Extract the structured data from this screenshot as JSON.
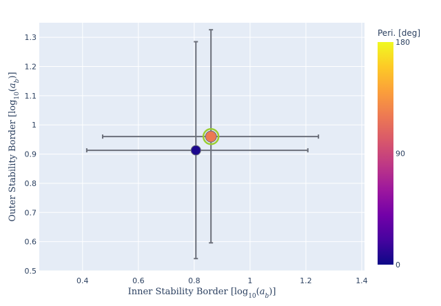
{
  "chart_data": {
    "type": "scatter",
    "title": "",
    "xlabel": {
      "prefix": "Inner Stability Border [log",
      "sub": "10",
      "mid": "(",
      "var": "a",
      "varsub": "b",
      "suffix": ")]"
    },
    "ylabel": {
      "prefix": "Outer Stability Border [log",
      "sub": "10",
      "mid": "(",
      "var": "a",
      "varsub": "b",
      "suffix": ")]"
    },
    "xlim": [
      0.245,
      1.41
    ],
    "ylim": [
      0.5,
      1.35
    ],
    "x_ticks": [
      0.4,
      0.6,
      0.8,
      1,
      1.2,
      1.4
    ],
    "x_tick_labels": [
      "0.4",
      "0.6",
      "0.8",
      "1",
      "1.2",
      "1.4"
    ],
    "y_ticks": [
      0.5,
      0.6,
      0.7,
      0.8,
      0.9,
      1,
      1.1,
      1.2,
      1.3
    ],
    "y_tick_labels": [
      "0.5",
      "0.6",
      "0.7",
      "0.8",
      "0.9",
      "1",
      "1.1",
      "1.2",
      "1.3"
    ],
    "grid": true,
    "points": [
      {
        "x": 0.806,
        "y": 0.913,
        "x_err_minus": 0.391,
        "x_err_plus": 0.401,
        "y_err_minus": 0.371,
        "y_err_plus": 0.372,
        "color_value": 5,
        "highlighted": false
      },
      {
        "x": 0.86,
        "y": 0.96,
        "x_err_minus": 0.388,
        "x_err_plus": 0.385,
        "y_err_minus": 0.364,
        "y_err_plus": 0.366,
        "color_value": 120,
        "highlighted": true
      }
    ],
    "colorbar": {
      "title": "Peri. [deg]",
      "min": 0,
      "max": 180,
      "ticks": [
        0,
        90,
        180
      ],
      "tick_labels": [
        "0",
        "90",
        "180"
      ],
      "colorscale": [
        "#0d0887",
        "#46039f",
        "#7201a8",
        "#9c179e",
        "#bd3786",
        "#d8576b",
        "#ed7953",
        "#fb9f3a",
        "#fdca26",
        "#f0f921"
      ]
    },
    "colors": {
      "plot_bg": "#e5ecf6",
      "grid": "#ffffff",
      "error_bar": "#6b6f7a",
      "highlight_ring": "#9acd32"
    }
  }
}
